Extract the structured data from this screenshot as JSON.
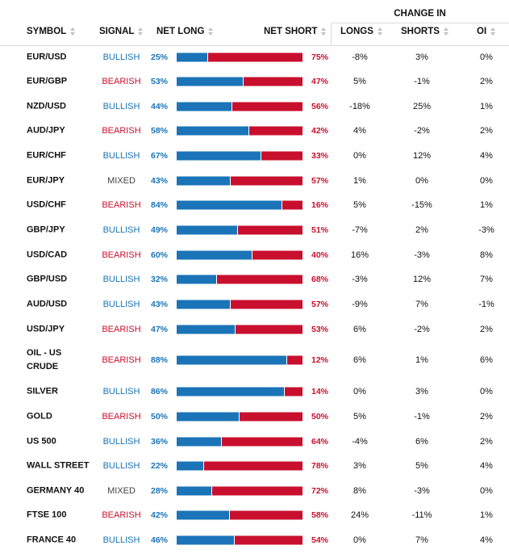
{
  "header": {
    "change_in": "CHANGE IN",
    "symbol": "SYMBOL",
    "signal": "SIGNAL",
    "net_long": "NET LONG",
    "net_short": "NET SHORT",
    "longs": "LONGS",
    "shorts": "SHORTS",
    "oi": "OI"
  },
  "colors": {
    "bullish": "#1a74b7",
    "bearish": "#c8102e",
    "mixed": "#444444"
  },
  "rows": [
    {
      "symbol": "EUR/USD",
      "signal": "BULLISH",
      "long": "25%",
      "short": "75%",
      "long_value": 25,
      "longs": "-8%",
      "shorts": "3%",
      "oi": "0%"
    },
    {
      "symbol": "EUR/GBP",
      "signal": "BEARISH",
      "long": "53%",
      "short": "47%",
      "long_value": 53,
      "longs": "5%",
      "shorts": "-1%",
      "oi": "2%"
    },
    {
      "symbol": "NZD/USD",
      "signal": "BULLISH",
      "long": "44%",
      "short": "56%",
      "long_value": 44,
      "longs": "-18%",
      "shorts": "25%",
      "oi": "1%"
    },
    {
      "symbol": "AUD/JPY",
      "signal": "BEARISH",
      "long": "58%",
      "short": "42%",
      "long_value": 58,
      "longs": "4%",
      "shorts": "-2%",
      "oi": "2%"
    },
    {
      "symbol": "EUR/CHF",
      "signal": "BULLISH",
      "long": "67%",
      "short": "33%",
      "long_value": 67,
      "longs": "0%",
      "shorts": "12%",
      "oi": "4%"
    },
    {
      "symbol": "EUR/JPY",
      "signal": "MIXED",
      "long": "43%",
      "short": "57%",
      "long_value": 43,
      "longs": "1%",
      "shorts": "0%",
      "oi": "0%"
    },
    {
      "symbol": "USD/CHF",
      "signal": "BEARISH",
      "long": "84%",
      "short": "16%",
      "long_value": 84,
      "longs": "5%",
      "shorts": "-15%",
      "oi": "1%"
    },
    {
      "symbol": "GBP/JPY",
      "signal": "BULLISH",
      "long": "49%",
      "short": "51%",
      "long_value": 49,
      "longs": "-7%",
      "shorts": "2%",
      "oi": "-3%"
    },
    {
      "symbol": "USD/CAD",
      "signal": "BEARISH",
      "long": "60%",
      "short": "40%",
      "long_value": 60,
      "longs": "16%",
      "shorts": "-3%",
      "oi": "8%"
    },
    {
      "symbol": "GBP/USD",
      "signal": "BULLISH",
      "long": "32%",
      "short": "68%",
      "long_value": 32,
      "longs": "-3%",
      "shorts": "12%",
      "oi": "7%"
    },
    {
      "symbol": "AUD/USD",
      "signal": "BULLISH",
      "long": "43%",
      "short": "57%",
      "long_value": 43,
      "longs": "-9%",
      "shorts": "7%",
      "oi": "-1%"
    },
    {
      "symbol": "USD/JPY",
      "signal": "BEARISH",
      "long": "47%",
      "short": "53%",
      "long_value": 47,
      "longs": "6%",
      "shorts": "-2%",
      "oi": "2%"
    },
    {
      "symbol": "OIL - US CRUDE",
      "signal": "BEARISH",
      "long": "88%",
      "short": "12%",
      "long_value": 88,
      "longs": "6%",
      "shorts": "1%",
      "oi": "6%"
    },
    {
      "symbol": "SILVER",
      "signal": "BULLISH",
      "long": "86%",
      "short": "14%",
      "long_value": 86,
      "longs": "0%",
      "shorts": "3%",
      "oi": "0%"
    },
    {
      "symbol": "GOLD",
      "signal": "BEARISH",
      "long": "50%",
      "short": "50%",
      "long_value": 50,
      "longs": "5%",
      "shorts": "-1%",
      "oi": "2%"
    },
    {
      "symbol": "US 500",
      "signal": "BULLISH",
      "long": "36%",
      "short": "64%",
      "long_value": 36,
      "longs": "-4%",
      "shorts": "6%",
      "oi": "2%"
    },
    {
      "symbol": "WALL STREET",
      "signal": "BULLISH",
      "long": "22%",
      "short": "78%",
      "long_value": 22,
      "longs": "3%",
      "shorts": "5%",
      "oi": "4%"
    },
    {
      "symbol": "GERMANY 40",
      "signal": "MIXED",
      "long": "28%",
      "short": "72%",
      "long_value": 28,
      "longs": "8%",
      "shorts": "-3%",
      "oi": "0%"
    },
    {
      "symbol": "FTSE 100",
      "signal": "BEARISH",
      "long": "42%",
      "short": "58%",
      "long_value": 42,
      "longs": "24%",
      "shorts": "-11%",
      "oi": "1%"
    },
    {
      "symbol": "FRANCE 40",
      "signal": "BULLISH",
      "long": "46%",
      "short": "54%",
      "long_value": 46,
      "longs": "0%",
      "shorts": "7%",
      "oi": "4%"
    }
  ]
}
